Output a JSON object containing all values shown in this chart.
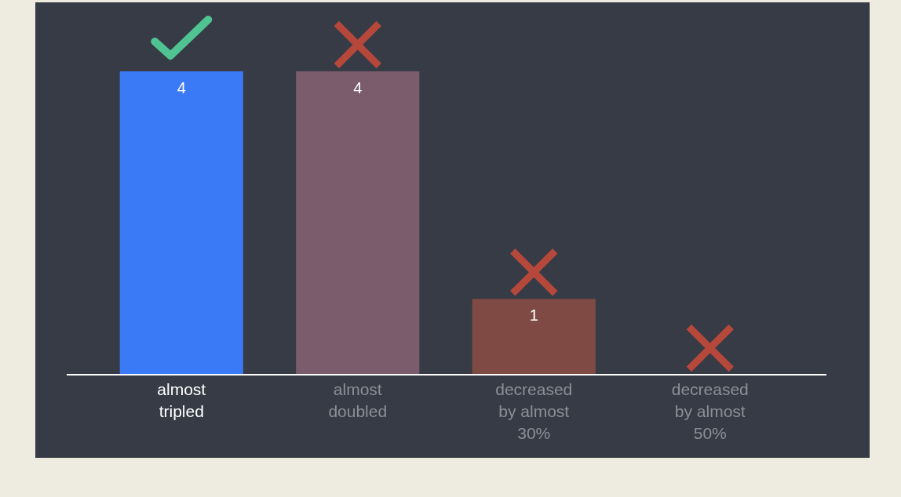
{
  "chart_data": {
    "type": "bar",
    "categories": [
      "almost tripled",
      "almost doubled",
      "decreased by almost 30%",
      "decreased by almost 50%"
    ],
    "values": [
      4,
      4,
      1,
      0
    ],
    "colors": [
      "#3b7af7",
      "#7a5c6c",
      "#7e4a43",
      "#7e4a43"
    ],
    "value_labels": [
      "4",
      "4",
      "1",
      null
    ],
    "ylim": [
      0,
      4
    ]
  }
}
